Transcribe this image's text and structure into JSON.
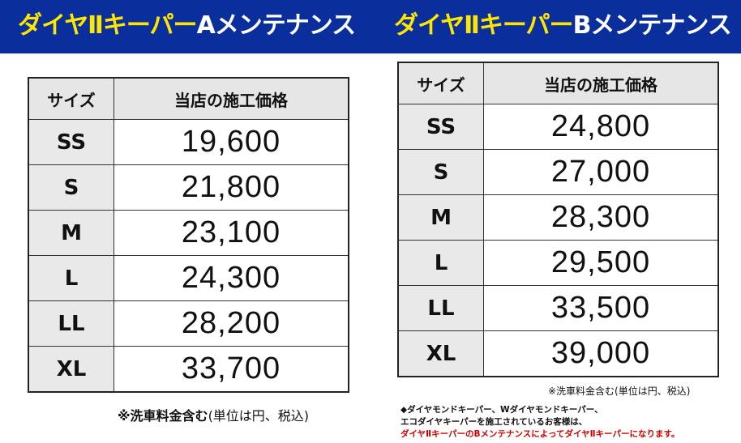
{
  "banner": {
    "a": {
      "prefix": "ダイヤⅡキーパー",
      "suffix": "Aメンテナンス"
    },
    "b": {
      "prefix": "ダイヤⅡキーパー",
      "suffix": "Bメンテナンス"
    }
  },
  "colors": {
    "banner_bg": "#0a2e9c",
    "banner_prefix": "#ffe600",
    "banner_suffix": "#ffffff",
    "footnote_red": "#d40000"
  },
  "table_a": {
    "headers": [
      "サイズ",
      "当店の施工価格"
    ],
    "rows": [
      {
        "size": "SS",
        "price": "19,600"
      },
      {
        "size": "S",
        "price": "21,800"
      },
      {
        "size": "M",
        "price": "23,100"
      },
      {
        "size": "L",
        "price": "24,300"
      },
      {
        "size": "LL",
        "price": "28,200"
      },
      {
        "size": "XL",
        "price": "33,700"
      }
    ],
    "note_bold": "※洗車料金含む",
    "note_rest": "(単位は円、税込)"
  },
  "table_b": {
    "headers": [
      "サイズ",
      "当店の施工価格"
    ],
    "rows": [
      {
        "size": "SS",
        "price": "24,800"
      },
      {
        "size": "S",
        "price": "27,000"
      },
      {
        "size": "M",
        "price": "28,300"
      },
      {
        "size": "L",
        "price": "29,500"
      },
      {
        "size": "LL",
        "price": "33,500"
      },
      {
        "size": "XL",
        "price": "39,000"
      }
    ],
    "note": "※洗車料金含む(単位は円、税込)"
  },
  "footnote": {
    "line1": "◆ダイヤモンドキーパー、Wダイヤモンドキーパー、",
    "line2": "エコダイヤキーパーを施工されているお客様は、",
    "line3": "ダイヤⅡキーパーのBメンテナンスによってダイヤⅡキーパーになります。"
  }
}
